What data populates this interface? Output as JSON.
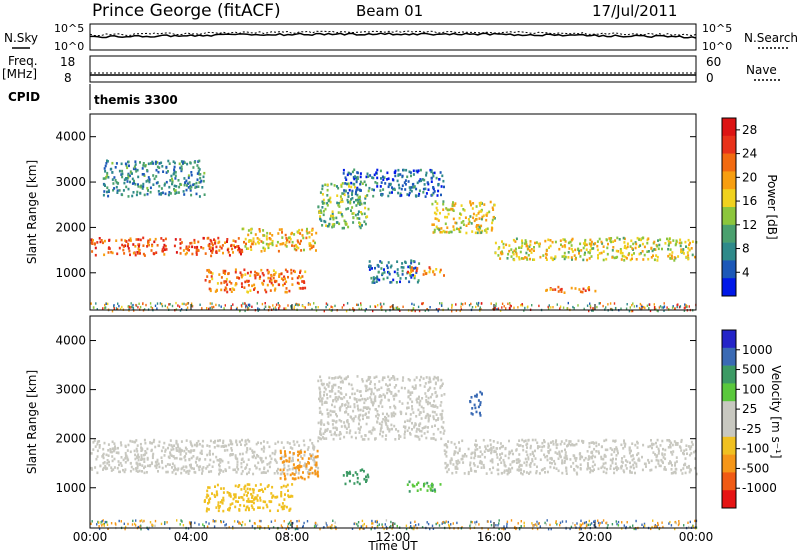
{
  "header": {
    "station": "Prince George (fitACF)",
    "beam": "Beam 01",
    "date": "17/Jul/2011"
  },
  "noise_panel": {
    "left_label": "N.Sky",
    "right_label": "N.Search",
    "left_ticks": [
      "10^5",
      "10^0"
    ],
    "right_ticks": [
      "10^5",
      "10^0"
    ]
  },
  "freq_panel": {
    "left_label_line1": "Freq.",
    "left_label_line2": "[MHz]",
    "right_label": "Nave",
    "left_ticks": [
      "18",
      "8"
    ],
    "right_ticks": [
      "60",
      "0"
    ]
  },
  "cpid": {
    "label": "CPID",
    "value": "themis 3300"
  },
  "x_axis": {
    "label": "Time UT",
    "ticks": [
      "00:00",
      "04:00",
      "08:00",
      "12:00",
      "16:00",
      "20:00",
      "00:00"
    ]
  },
  "colors": {
    "power": [
      "#0018e8",
      "#1c58b8",
      "#2f8a8a",
      "#4aa06e",
      "#8cc63c",
      "#f0d21e",
      "#f79e10",
      "#f26a10",
      "#e8321a",
      "#dc1414"
    ],
    "velocity": [
      "#2424c8",
      "#3a6ab4",
      "#3c9a64",
      "#5ac83c",
      "#c8c8c0",
      "#c8c8c0",
      "#f0c020",
      "#f59618",
      "#f05a14",
      "#e61414"
    ]
  },
  "chart_data": [
    {
      "type": "heatmap",
      "name": "power-panel",
      "title": "",
      "xlabel": "Time UT",
      "ylabel": "Slant Range [km]",
      "xlim": [
        0,
        24
      ],
      "ylim": [
        180,
        4500
      ],
      "y_ticks": [
        "1000",
        "2000",
        "3000",
        "4000"
      ],
      "colorbar_label": "Power [dB]",
      "colorbar_ticks": [
        "4",
        "8",
        "12",
        "16",
        "20",
        "24",
        "28"
      ],
      "colorbar_range": [
        0,
        30
      ],
      "echo_regions": [
        {
          "t": [
            0.0,
            6.0
          ],
          "range": [
            1400,
            1800
          ],
          "power": 24
        },
        {
          "t": [
            6.0,
            9.0
          ],
          "range": [
            1500,
            2000
          ],
          "power": 18
        },
        {
          "t": [
            9.0,
            11.0
          ],
          "range": [
            2000,
            3000
          ],
          "power": 12
        },
        {
          "t": [
            10.0,
            14.0
          ],
          "range": [
            2700,
            3300
          ],
          "power": 6
        },
        {
          "t": [
            13.5,
            16.0
          ],
          "range": [
            1900,
            2600
          ],
          "power": 16
        },
        {
          "t": [
            16.0,
            24.0
          ],
          "range": [
            1300,
            1800
          ],
          "power": 16
        },
        {
          "t": [
            4.5,
            8.5
          ],
          "range": [
            600,
            1100
          ],
          "power": 22
        },
        {
          "t": [
            0.5,
            4.5
          ],
          "range": [
            2700,
            3500
          ],
          "power": 8
        },
        {
          "t": [
            11.0,
            13.0
          ],
          "range": [
            800,
            1300
          ],
          "power": 6
        },
        {
          "t": [
            12.5,
            14.0
          ],
          "range": [
            950,
            1150
          ],
          "power": 20
        },
        {
          "t": [
            18.0,
            20.0
          ],
          "range": [
            580,
            720
          ],
          "power": 22
        }
      ]
    },
    {
      "type": "heatmap",
      "name": "velocity-panel",
      "title": "",
      "xlabel": "Time UT",
      "ylabel": "Slant Range [km]",
      "xlim": [
        0,
        24
      ],
      "ylim": [
        180,
        4500
      ],
      "y_ticks": [
        "1000",
        "2000",
        "3000",
        "4000"
      ],
      "colorbar_label": "Velocity [m s⁻¹]",
      "colorbar_ticks": [
        "1000",
        "500",
        "100",
        "25",
        "-25",
        "-100",
        "-500",
        "-1000"
      ],
      "echo_regions": [
        {
          "t": [
            0.0,
            9.0
          ],
          "range": [
            1300,
            2000
          ],
          "velocity": 0
        },
        {
          "t": [
            9.0,
            14.0
          ],
          "range": [
            2000,
            3300
          ],
          "velocity": 0
        },
        {
          "t": [
            14.0,
            24.0
          ],
          "range": [
            1300,
            2000
          ],
          "velocity": 0
        },
        {
          "t": [
            4.5,
            8.0
          ],
          "range": [
            550,
            1100
          ],
          "velocity": -200
        },
        {
          "t": [
            7.5,
            9.0
          ],
          "range": [
            1200,
            1800
          ],
          "velocity": -700
        },
        {
          "t": [
            12.5,
            14.0
          ],
          "range": [
            950,
            1150
          ],
          "velocity": 60
        },
        {
          "t": [
            10.0,
            11.0
          ],
          "range": [
            1100,
            1400
          ],
          "velocity": 80
        },
        {
          "t": [
            15.0,
            15.5
          ],
          "range": [
            2500,
            3000
          ],
          "velocity": 600
        }
      ]
    }
  ]
}
